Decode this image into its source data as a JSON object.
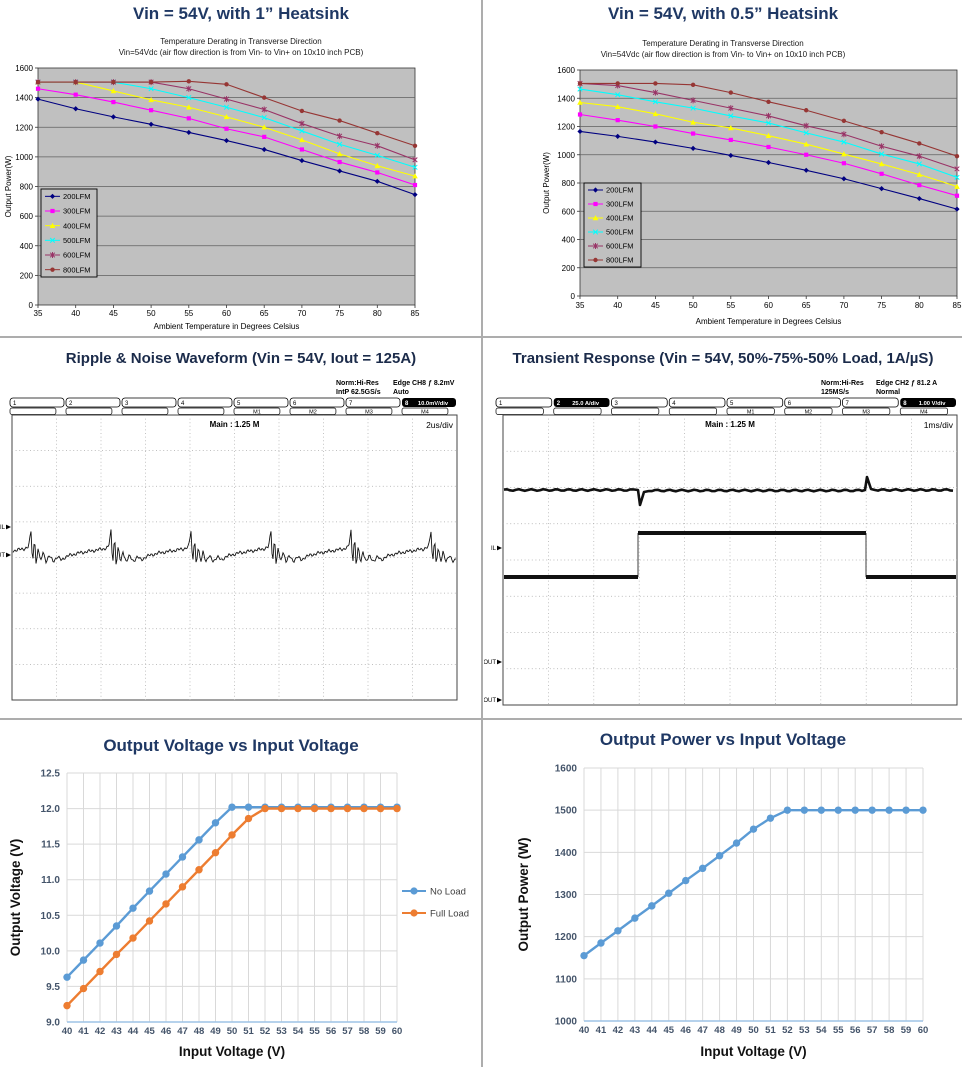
{
  "page": {
    "background": "#ffffff"
  },
  "colors": {
    "panel_title": "#1F3864",
    "classic_plot_bg": "#C0C0C0",
    "classic_grid": "#5f5f5f",
    "modern_grid": "#D9D9D9",
    "modern_axis": "#9DC3E6",
    "modern_tick_text": "#44546A",
    "legend_text": "#404040",
    "scope_trace": "#111111"
  },
  "chart_data": [
    {
      "id": "derating_1in_heatsink",
      "type": "line",
      "title": "Vin = 54V, with 1” Heatsink",
      "subtitle": [
        "Temperature Derating in Transverse Direction",
        "Vin=54Vdc (air flow direction is from Vin- to Vin+ on 10x10 inch PCB)"
      ],
      "xlabel": "Ambient Temperature in Degrees Celsius",
      "ylabel": "Output Power(W)",
      "x": [
        35,
        40,
        45,
        50,
        55,
        60,
        65,
        70,
        75,
        80,
        85
      ],
      "ylim": [
        0,
        1600
      ],
      "ytick": 200,
      "grid": "horizontal",
      "legend_position": "inside-left",
      "series": [
        {
          "name": "200LFM",
          "color": "#000080",
          "marker": "diamond",
          "values": [
            1390,
            1325,
            1270,
            1220,
            1165,
            1110,
            1050,
            975,
            905,
            835,
            745
          ]
        },
        {
          "name": "300LFM",
          "color": "#FF00FF",
          "marker": "square",
          "values": [
            1460,
            1420,
            1370,
            1315,
            1260,
            1190,
            1135,
            1050,
            965,
            895,
            810
          ]
        },
        {
          "name": "400LFM",
          "color": "#FFFF00",
          "marker": "triangle",
          "values": [
            1505,
            1505,
            1445,
            1385,
            1335,
            1270,
            1200,
            1115,
            1020,
            940,
            870
          ]
        },
        {
          "name": "500LFM",
          "color": "#00FFFF",
          "marker": "x",
          "values": [
            1505,
            1505,
            1505,
            1460,
            1400,
            1335,
            1265,
            1175,
            1085,
            1010,
            930
          ]
        },
        {
          "name": "600LFM",
          "color": "#993366",
          "marker": "star",
          "values": [
            1505,
            1505,
            1505,
            1505,
            1460,
            1390,
            1320,
            1225,
            1140,
            1075,
            980
          ]
        },
        {
          "name": "800LFM",
          "color": "#963634",
          "marker": "circle",
          "values": [
            1505,
            1505,
            1505,
            1505,
            1510,
            1490,
            1400,
            1310,
            1245,
            1160,
            1075
          ]
        }
      ]
    },
    {
      "id": "derating_05in_heatsink",
      "type": "line",
      "title": "Vin = 54V, with 0.5” Heatsink",
      "subtitle": [
        "Temperature Derating in Transverse Direction",
        "Vin=54Vdc (air flow direction is from Vin- to Vin+ on 10x10 inch PCB)"
      ],
      "xlabel": "Ambient Temperature in Degrees Celsius",
      "ylabel": "Output Power(W)",
      "x": [
        35,
        40,
        45,
        50,
        55,
        60,
        65,
        70,
        75,
        80,
        85
      ],
      "ylim": [
        0,
        1600
      ],
      "ytick": 200,
      "grid": "horizontal",
      "legend_position": "inside-left",
      "series": [
        {
          "name": "200LFM",
          "color": "#000080",
          "marker": "diamond",
          "values": [
            1165,
            1130,
            1090,
            1045,
            995,
            945,
            890,
            830,
            760,
            690,
            615
          ]
        },
        {
          "name": "300LFM",
          "color": "#FF00FF",
          "marker": "square",
          "values": [
            1285,
            1245,
            1200,
            1150,
            1105,
            1055,
            1000,
            940,
            865,
            785,
            710
          ]
        },
        {
          "name": "400LFM",
          "color": "#FFFF00",
          "marker": "triangle",
          "values": [
            1370,
            1340,
            1290,
            1230,
            1190,
            1135,
            1075,
            1005,
            935,
            860,
            775
          ]
        },
        {
          "name": "500LFM",
          "color": "#00FFFF",
          "marker": "x",
          "values": [
            1465,
            1425,
            1375,
            1330,
            1275,
            1225,
            1155,
            1090,
            1005,
            935,
            840
          ]
        },
        {
          "name": "600LFM",
          "color": "#993366",
          "marker": "star",
          "values": [
            1505,
            1490,
            1440,
            1385,
            1330,
            1275,
            1205,
            1145,
            1060,
            990,
            900
          ]
        },
        {
          "name": "800LFM",
          "color": "#963634",
          "marker": "circle",
          "values": [
            1505,
            1505,
            1505,
            1495,
            1440,
            1375,
            1315,
            1240,
            1160,
            1080,
            990
          ]
        }
      ]
    },
    {
      "id": "vout_vs_vin",
      "type": "line",
      "title": "Output Voltage vs Input Voltage",
      "xlabel": "Input Voltage (V)",
      "ylabel": "Output Voltage (V)",
      "x": [
        40,
        41,
        42,
        43,
        44,
        45,
        46,
        47,
        48,
        49,
        50,
        51,
        52,
        53,
        54,
        55,
        56,
        57,
        58,
        59,
        60
      ],
      "ylim": [
        9.0,
        12.5
      ],
      "ytick": 0.5,
      "ytick_decimals": 1,
      "grid": "both",
      "legend_position": "right",
      "series": [
        {
          "name": "No Load",
          "color": "#5B9BD5",
          "marker": "circle",
          "values": [
            9.63,
            9.87,
            10.11,
            10.35,
            10.6,
            10.84,
            11.08,
            11.32,
            11.56,
            11.8,
            12.02,
            12.02,
            12.02,
            12.02,
            12.02,
            12.02,
            12.02,
            12.02,
            12.02,
            12.02,
            12.02
          ]
        },
        {
          "name": "Full Load",
          "color": "#ED7D31",
          "marker": "circle",
          "values": [
            9.23,
            9.47,
            9.71,
            9.95,
            10.18,
            10.42,
            10.66,
            10.9,
            11.14,
            11.38,
            11.63,
            11.86,
            12.0,
            12.0,
            12.0,
            12.0,
            12.0,
            12.0,
            12.0,
            12.0,
            12.0
          ]
        }
      ]
    },
    {
      "id": "pout_vs_vin",
      "type": "line",
      "title": "Output Power vs Input Voltage",
      "xlabel": "Input Voltage (V)",
      "ylabel": "Output Power (W)",
      "x": [
        40,
        41,
        42,
        43,
        44,
        45,
        46,
        47,
        48,
        49,
        50,
        51,
        52,
        53,
        54,
        55,
        56,
        57,
        58,
        59,
        60
      ],
      "ylim": [
        1000,
        1600
      ],
      "ytick": 100,
      "ytick_decimals": 0,
      "grid": "both",
      "legend_position": "none",
      "series": [
        {
          "name": "Output Power",
          "color": "#5B9BD5",
          "marker": "circle",
          "values": [
            1155,
            1185,
            1214,
            1244,
            1273,
            1303,
            1333,
            1362,
            1392,
            1422,
            1455,
            1481,
            1500,
            1500,
            1500,
            1500,
            1500,
            1500,
            1500,
            1500,
            1500
          ]
        }
      ]
    }
  ],
  "panels": {
    "ripple": {
      "title": "Ripple & Noise Waveform (Vin = 54V, Iout = 125A)",
      "scope": {
        "acq_mode": "Norm:Hi-Res",
        "sample_rate": "IntP 62.5GS/s",
        "trigger": "Edge CH8 ƒ 8.2mV",
        "trigger_mode": "Auto",
        "main": "Main : 1.25 M",
        "timebase": "2us/div",
        "channels": [
          "1",
          "2",
          "3",
          "4",
          "5",
          "6",
          "7",
          "8"
        ],
        "badges": {
          "8": "10.0mV/div"
        },
        "sub_tabs": [
          "",
          "",
          "",
          "",
          "M1",
          "M2",
          "M3",
          "M4"
        ],
        "trace_labels": [
          "IL",
          "VOUT"
        ]
      }
    },
    "transient": {
      "title": "Transient Response (Vin = 54V, 50%-75%-50% Load, 1A/µS)",
      "scope": {
        "acq_mode": "Norm:Hi-Res",
        "sample_rate": "125MS/s",
        "trigger": "Edge CH2 ƒ 81.2 A",
        "trigger_mode": "Normal",
        "main": "Main : 1.25 M",
        "timebase": "1ms/div",
        "channels": [
          "1",
          "2",
          "3",
          "4",
          "5",
          "6",
          "7",
          "8"
        ],
        "badges": {
          "2": "25.0 A/div",
          "8": "1.00 V/div"
        },
        "sub_tabs": [
          "",
          "",
          "",
          "",
          "M1",
          "M2",
          "M3",
          "M4"
        ],
        "trace_labels": [
          "IL",
          "IOUT",
          "VOUT"
        ]
      }
    }
  }
}
